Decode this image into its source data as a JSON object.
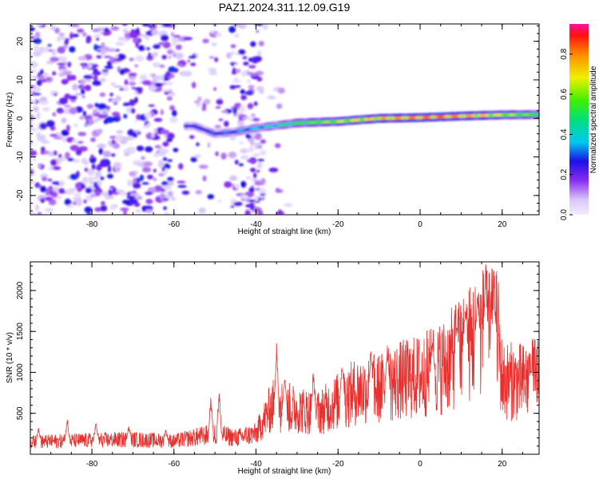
{
  "title": "PAZ1.2024.311.12.09.G19",
  "colors": {
    "snr_line": "#e8312f",
    "spec_low": "#d8c8f6",
    "spec_mid": "#7b1ff0",
    "spec_high": "#ff1010"
  },
  "chart_data": [
    {
      "type": "heatmap",
      "xlabel": "Height of straight line (km)",
      "ylabel": "Frequency (Hz)",
      "xlim": [
        -95,
        29
      ],
      "ylim": [
        -25,
        24.5
      ],
      "xticks": [
        -80,
        -60,
        -40,
        -20,
        0,
        20
      ],
      "yticks": [
        -20,
        -10,
        0,
        10,
        20
      ],
      "colorbar": {
        "label": "Normalized spectral amplitude",
        "range": [
          0,
          0.95
        ],
        "ticks": [
          0.0,
          0.2,
          0.4,
          0.6,
          0.8
        ],
        "colormap": "rainbow (light purple → red)"
      },
      "ridge": {
        "description": "main tone",
        "points": [
          [
            -55,
            -2
          ],
          [
            -50,
            -4
          ],
          [
            -45,
            -3.5
          ],
          [
            -40,
            -2.5
          ],
          [
            -30,
            -1.2
          ],
          [
            -20,
            -0.8
          ],
          [
            -10,
            0
          ],
          [
            0,
            0.2
          ],
          [
            10,
            0.6
          ],
          [
            20,
            0.9
          ],
          [
            29,
            1.0
          ]
        ],
        "amplitude": [
          [
            -55,
            0.3
          ],
          [
            -45,
            0.35
          ],
          [
            -35,
            0.45
          ],
          [
            -25,
            0.65
          ],
          [
            -15,
            0.75
          ],
          [
            -5,
            0.85
          ],
          [
            5,
            0.9
          ],
          [
            15,
            0.8
          ],
          [
            29,
            0.6
          ]
        ]
      },
      "noise_region": {
        "xrange": [
          -95,
          -38
        ],
        "yrange": [
          -25,
          24.5
        ],
        "amplitude": 0.3
      }
    },
    {
      "type": "line",
      "xlabel": "Height of straight line (km)",
      "ylabel": "SNR (10 * v/v)",
      "xlim": [
        -95,
        29
      ],
      "ylim": [
        0,
        2350
      ],
      "xticks": [
        -80,
        -60,
        -40,
        -20,
        0,
        20
      ],
      "yticks": [
        500,
        1000,
        1500,
        2000
      ],
      "series": [
        {
          "envelope": [
            [
              -95,
              150
            ],
            [
              -88,
              160
            ],
            [
              -80,
              170
            ],
            [
              -70,
              180
            ],
            [
              -60,
              160
            ],
            [
              -50,
              250
            ],
            [
              -45,
              200
            ],
            [
              -40,
              250
            ],
            [
              -36,
              600
            ],
            [
              -30,
              550
            ],
            [
              -25,
              500
            ],
            [
              -20,
              650
            ],
            [
              -15,
              780
            ],
            [
              -10,
              800
            ],
            [
              -5,
              900
            ],
            [
              0,
              950
            ],
            [
              5,
              1050
            ],
            [
              10,
              1250
            ],
            [
              15,
              1500
            ],
            [
              19,
              1450
            ],
            [
              20,
              900
            ],
            [
              25,
              880
            ],
            [
              29,
              950
            ]
          ],
          "spikes": [
            [
              -93,
              350
            ],
            [
              -86,
              500
            ],
            [
              -79,
              420
            ],
            [
              -71,
              380
            ],
            [
              -62,
              320
            ],
            [
              -51,
              800
            ],
            [
              -49,
              900
            ],
            [
              -35,
              1480
            ],
            [
              -33,
              1050
            ],
            [
              -26,
              1100
            ],
            [
              -19,
              1250
            ],
            [
              -12,
              1350
            ],
            [
              -8,
              1400
            ],
            [
              3,
              1450
            ],
            [
              9,
              1650
            ],
            [
              11,
              1900
            ],
            [
              14,
              2050
            ],
            [
              16,
              2350
            ],
            [
              18,
              2100
            ],
            [
              27,
              1050
            ]
          ]
        }
      ]
    }
  ]
}
